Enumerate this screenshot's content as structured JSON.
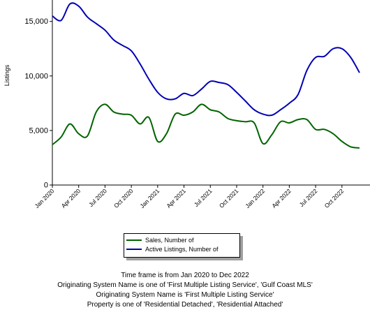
{
  "chart_data": {
    "type": "line",
    "title": "",
    "xlabel": "",
    "ylabel": "Listings",
    "ylim": [
      0,
      17000
    ],
    "yticks": [
      0,
      5000,
      10000,
      15000
    ],
    "ytick_labels": [
      "0",
      "5,000",
      "10,000",
      "15,000"
    ],
    "grid": false,
    "legend_position": "bottom",
    "x": [
      "2020-01",
      "2020-02",
      "2020-03",
      "2020-04",
      "2020-05",
      "2020-06",
      "2020-07",
      "2020-08",
      "2020-09",
      "2020-10",
      "2020-11",
      "2020-12",
      "2021-01",
      "2021-02",
      "2021-03",
      "2021-04",
      "2021-05",
      "2021-06",
      "2021-07",
      "2021-08",
      "2021-09",
      "2021-10",
      "2021-11",
      "2021-12",
      "2022-01",
      "2022-02",
      "2022-03",
      "2022-04",
      "2022-05",
      "2022-06",
      "2022-07",
      "2022-08",
      "2022-09",
      "2022-10",
      "2022-11",
      "2022-12"
    ],
    "xtick_labels": [
      {
        "x": "2020-01",
        "label": "Jan 2020"
      },
      {
        "x": "2020-04",
        "label": "Apr 2020"
      },
      {
        "x": "2020-07",
        "label": "Jul 2020"
      },
      {
        "x": "2020-10",
        "label": "Oct 2020"
      },
      {
        "x": "2021-01",
        "label": "Jan 2021"
      },
      {
        "x": "2021-04",
        "label": "Apr 2021"
      },
      {
        "x": "2021-07",
        "label": "Jul 2021"
      },
      {
        "x": "2021-10",
        "label": "Oct 2021"
      },
      {
        "x": "2022-01",
        "label": "Jan 2022"
      },
      {
        "x": "2022-04",
        "label": "Apr 2022"
      },
      {
        "x": "2022-07",
        "label": "Jul 2022"
      },
      {
        "x": "2022-10",
        "label": "Oct 2022"
      }
    ],
    "series": [
      {
        "name": "Sales, Number of",
        "color": "#006400",
        "values": [
          3700,
          4400,
          5600,
          4700,
          4500,
          6700,
          7400,
          6700,
          6500,
          6400,
          5600,
          6200,
          4000,
          4700,
          6500,
          6400,
          6700,
          7400,
          6900,
          6700,
          6100,
          5900,
          5800,
          5700,
          3800,
          4600,
          5800,
          5700,
          6000,
          6000,
          5100,
          5100,
          4700,
          4000,
          3500,
          3400
        ]
      },
      {
        "name": "Active Listings, Number of",
        "color": "#0000b4",
        "values": [
          15500,
          15100,
          16600,
          16400,
          15400,
          14800,
          14200,
          13300,
          12800,
          12300,
          11100,
          9700,
          8500,
          7900,
          7900,
          8400,
          8200,
          8800,
          9500,
          9400,
          9200,
          8500,
          7700,
          6900,
          6500,
          6400,
          6900,
          7500,
          8300,
          10500,
          11700,
          11800,
          12500,
          12500,
          11700,
          10300
        ]
      }
    ]
  },
  "legend": {
    "items": [
      {
        "label": "Sales, Number of",
        "color": "#006400"
      },
      {
        "label": "Active Listings, Number of",
        "color": "#0000b4"
      }
    ]
  },
  "footnotes": [
    "Time frame is from Jan 2020 to Dec 2022",
    "Originating System Name is one of 'First Multiple Listing Service', 'Gulf Coast MLS'",
    "Originating System Name is 'First Multiple Listing Service'",
    "Property is one of 'Residential Detached', 'Residential Attached'"
  ]
}
